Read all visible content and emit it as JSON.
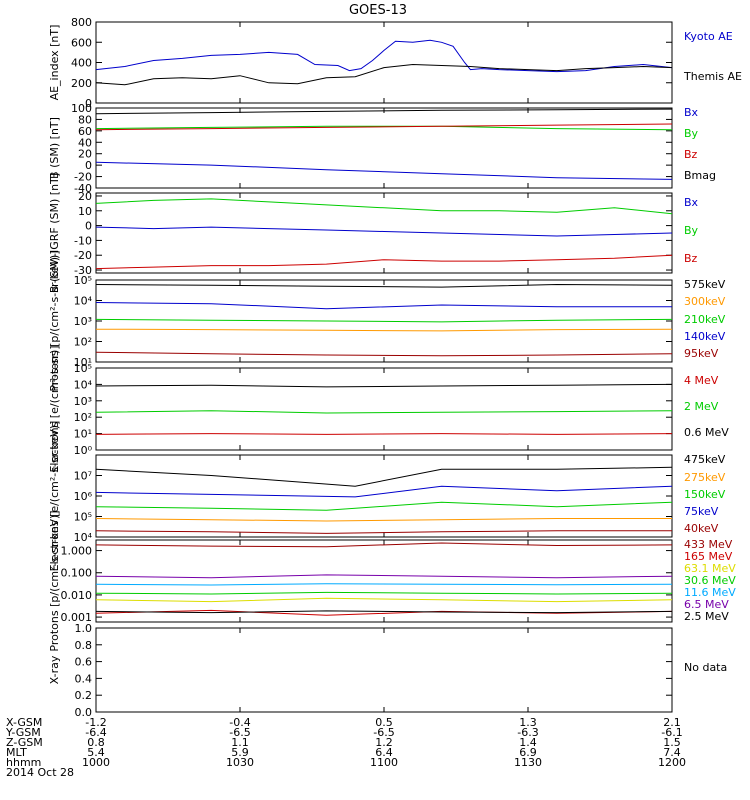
{
  "title": "GOES-13",
  "no_data_text": "No data",
  "ephemeris": {
    "rows": [
      {
        "label": "X-GSM",
        "values": [
          "-1.2",
          "-0.4",
          "0.5",
          "1.3",
          "2.1"
        ]
      },
      {
        "label": "Y-GSM",
        "values": [
          "-6.4",
          "-6.5",
          "-6.5",
          "-6.3",
          "-6.1"
        ]
      },
      {
        "label": "Z-GSM",
        "values": [
          "0.8",
          "1.1",
          "1.2",
          "1.4",
          "1.5"
        ]
      },
      {
        "label": "MLT",
        "values": [
          "5.4",
          "5.9",
          "6.4",
          "6.9",
          "7.4"
        ]
      },
      {
        "label": "hhmm",
        "values": [
          "1000",
          "1030",
          "1100",
          "1130",
          "1200"
        ]
      }
    ],
    "date": "2014 Oct 28"
  },
  "colors": {
    "black": "#000000",
    "blue": "#0000cc",
    "green": "#00cc00",
    "red": "#cc0000",
    "orange": "#ff9900",
    "cyan": "#00aaff",
    "yellow": "#dddd00",
    "purple": "#7700aa",
    "darkred": "#990000"
  },
  "chart_data": [
    {
      "type": "line",
      "ylabel": "AE_index [nT]",
      "yscale": "linear",
      "ylim": [
        0,
        800
      ],
      "ticks": [
        "0",
        "200",
        "400",
        "600",
        "800"
      ],
      "tick_values": [
        0,
        200,
        400,
        600,
        800
      ],
      "x_range_hhmm": [
        "1000",
        "1200"
      ],
      "series": [
        {
          "name": "Kyoto AE",
          "color": "#0000cc",
          "x": [
            0,
            0.05,
            0.1,
            0.15,
            0.2,
            0.25,
            0.3,
            0.35,
            0.38,
            0.42,
            0.44,
            0.46,
            0.48,
            0.5,
            0.52,
            0.55,
            0.58,
            0.6,
            0.62,
            0.64,
            0.65,
            0.67,
            0.7,
            0.75,
            0.8,
            0.85,
            0.9,
            0.95,
            1.0
          ],
          "y": [
            330,
            360,
            420,
            440,
            470,
            480,
            500,
            480,
            380,
            370,
            320,
            340,
            420,
            520,
            610,
            600,
            620,
            600,
            560,
            400,
            330,
            340,
            330,
            320,
            310,
            320,
            360,
            380,
            350
          ]
        },
        {
          "name": "Themis AE",
          "color": "#000000",
          "x": [
            0,
            0.05,
            0.1,
            0.15,
            0.2,
            0.25,
            0.3,
            0.35,
            0.4,
            0.45,
            0.5,
            0.55,
            0.6,
            0.65,
            0.7,
            0.75,
            0.8,
            0.85,
            0.9,
            0.95,
            1.0
          ],
          "y": [
            200,
            180,
            240,
            250,
            240,
            270,
            200,
            190,
            250,
            260,
            350,
            380,
            370,
            360,
            340,
            330,
            320,
            340,
            350,
            360,
            350
          ]
        }
      ]
    },
    {
      "type": "line",
      "ylabel": "B (SM) [nT]",
      "yscale": "linear",
      "ylim": [
        -40,
        100
      ],
      "ticks": [
        "-40",
        "-20",
        "0",
        "20",
        "40",
        "60",
        "80",
        "100"
      ],
      "tick_values": [
        -40,
        -20,
        0,
        20,
        40,
        60,
        80,
        100
      ],
      "series": [
        {
          "name": "Bx",
          "color": "#0000cc",
          "x": [
            0,
            0.2,
            0.4,
            0.6,
            0.8,
            1.0
          ],
          "y": [
            5,
            0,
            -8,
            -15,
            -22,
            -25
          ]
        },
        {
          "name": "By",
          "color": "#00cc00",
          "x": [
            0,
            0.2,
            0.4,
            0.6,
            0.8,
            1.0
          ],
          "y": [
            64,
            66,
            68,
            68,
            64,
            62
          ]
        },
        {
          "name": "Bz",
          "color": "#cc0000",
          "x": [
            0,
            0.2,
            0.4,
            0.6,
            0.8,
            1.0
          ],
          "y": [
            62,
            64,
            66,
            68,
            70,
            72
          ]
        },
        {
          "name": "Bmag",
          "color": "#000000",
          "x": [
            0,
            0.2,
            0.4,
            0.6,
            0.8,
            1.0
          ],
          "y": [
            90,
            92,
            94,
            96,
            97,
            98
          ]
        }
      ]
    },
    {
      "type": "line",
      "ylabel": "B (SM)-IGRF (SM) [nT]",
      "yscale": "linear",
      "ylim": [
        -32,
        22
      ],
      "ticks": [
        "-30",
        "-20",
        "-10",
        "0",
        "10",
        "20"
      ],
      "tick_values": [
        -30,
        -20,
        -10,
        0,
        10,
        20
      ],
      "series": [
        {
          "name": "Bx",
          "color": "#0000cc",
          "x": [
            0,
            0.1,
            0.2,
            0.3,
            0.4,
            0.5,
            0.6,
            0.7,
            0.8,
            0.9,
            1.0
          ],
          "y": [
            -1,
            -2,
            -1,
            -2,
            -3,
            -4,
            -5,
            -6,
            -7,
            -6,
            -5
          ]
        },
        {
          "name": "By",
          "color": "#00cc00",
          "x": [
            0,
            0.1,
            0.2,
            0.3,
            0.4,
            0.5,
            0.6,
            0.7,
            0.8,
            0.9,
            1.0
          ],
          "y": [
            15,
            17,
            18,
            16,
            14,
            12,
            10,
            10,
            9,
            12,
            8
          ]
        },
        {
          "name": "Bz",
          "color": "#cc0000",
          "x": [
            0,
            0.1,
            0.2,
            0.3,
            0.4,
            0.5,
            0.6,
            0.7,
            0.8,
            0.9,
            1.0
          ],
          "y": [
            -29,
            -28,
            -27,
            -27,
            -26,
            -23,
            -24,
            -24,
            -23,
            -22,
            -20
          ]
        }
      ]
    },
    {
      "type": "line",
      "ylabel": "Protons [p/(cm²-s-sr-keV)]",
      "yscale": "log",
      "ylim": [
        10,
        100000
      ],
      "ticks": [
        "10¹",
        "10²",
        "10³",
        "10⁴",
        "10⁵"
      ],
      "tick_values": [
        10,
        100,
        1000,
        10000,
        100000
      ],
      "series": [
        {
          "name": "575keV",
          "color": "#000000",
          "x": [
            0,
            0.2,
            0.4,
            0.6,
            0.8,
            1.0
          ],
          "y": [
            60000,
            55000,
            50000,
            45000,
            60000,
            55000
          ]
        },
        {
          "name": "300keV",
          "color": "#ff9900",
          "x": [
            0,
            0.2,
            0.4,
            0.6,
            0.8,
            1.0
          ],
          "y": [
            400,
            380,
            350,
            330,
            380,
            400
          ]
        },
        {
          "name": "210keV",
          "color": "#00cc00",
          "x": [
            0,
            0.2,
            0.4,
            0.6,
            0.8,
            1.0
          ],
          "y": [
            1200,
            1100,
            1000,
            900,
            1100,
            1200
          ]
        },
        {
          "name": "140keV",
          "color": "#0000cc",
          "x": [
            0,
            0.2,
            0.4,
            0.6,
            0.8,
            1.0
          ],
          "y": [
            8000,
            7000,
            4000,
            6000,
            5000,
            5000
          ]
        },
        {
          "name": "95keV",
          "color": "#990000",
          "x": [
            0,
            0.2,
            0.4,
            0.6,
            0.8,
            1.0
          ],
          "y": [
            30,
            25,
            22,
            20,
            22,
            25
          ]
        }
      ]
    },
    {
      "type": "line",
      "ylabel": "Electrons [e/(cm²-s-sr)]",
      "yscale": "log",
      "ylim": [
        1,
        100000
      ],
      "ticks": [
        "10⁰",
        "10¹",
        "10²",
        "10³",
        "10⁴",
        "10⁵"
      ],
      "tick_values": [
        1,
        10,
        100,
        1000,
        10000,
        100000
      ],
      "series": [
        {
          "name": "4 MeV",
          "color": "#cc0000",
          "x": [
            0,
            0.2,
            0.4,
            0.6,
            0.8,
            1.0
          ],
          "y": [
            9,
            10,
            9,
            10,
            9,
            10
          ]
        },
        {
          "name": "2 MeV",
          "color": "#00cc00",
          "x": [
            0,
            0.2,
            0.4,
            0.6,
            0.8,
            1.0
          ],
          "y": [
            200,
            250,
            180,
            200,
            220,
            250
          ]
        },
        {
          "name": "0.6 MeV",
          "color": "#000000",
          "x": [
            0,
            0.2,
            0.4,
            0.6,
            0.8,
            1.0
          ],
          "y": [
            8000,
            9000,
            7000,
            8000,
            9000,
            10000
          ]
        }
      ]
    },
    {
      "type": "line",
      "ylabel": "Electrons [e/(cm²-s-sr-keV)]",
      "yscale": "log",
      "ylim": [
        10000,
        100000000
      ],
      "ticks": [
        "10⁴",
        "10⁵",
        "10⁶",
        "10⁷"
      ],
      "tick_values": [
        10000,
        100000,
        1000000,
        10000000
      ],
      "series": [
        {
          "name": "475keV",
          "color": "#000000",
          "x": [
            0,
            0.2,
            0.45,
            0.6,
            0.8,
            1.0
          ],
          "y": [
            20000000,
            10000000,
            3000000,
            20000000,
            20000000,
            25000000
          ]
        },
        {
          "name": "275keV",
          "color": "#ff9900",
          "x": [
            0,
            0.2,
            0.4,
            0.6,
            0.8,
            1.0
          ],
          "y": [
            80000,
            70000,
            60000,
            70000,
            80000,
            80000
          ]
        },
        {
          "name": "150keV",
          "color": "#00cc00",
          "x": [
            0,
            0.2,
            0.4,
            0.6,
            0.8,
            1.0
          ],
          "y": [
            300000,
            250000,
            200000,
            500000,
            300000,
            500000
          ]
        },
        {
          "name": "75keV",
          "color": "#0000cc",
          "x": [
            0,
            0.2,
            0.45,
            0.6,
            0.8,
            1.0
          ],
          "y": [
            1500000,
            1200000,
            900000,
            3000000,
            1800000,
            3000000
          ]
        },
        {
          "name": "40keV",
          "color": "#990000",
          "x": [
            0,
            0.2,
            0.4,
            0.6,
            0.8,
            1.0
          ],
          "y": [
            20000,
            18000,
            15000,
            18000,
            20000,
            20000
          ]
        }
      ]
    },
    {
      "type": "line",
      "ylabel": "Protons [p/(cm²-s-sr-keV)]",
      "yscale": "log",
      "ylim": [
        0.0006,
        3
      ],
      "ticks": [
        "0.001",
        "0.010",
        "0.100",
        "1.000"
      ],
      "tick_values": [
        0.001,
        0.01,
        0.1,
        1
      ],
      "series": [
        {
          "name": "433 MeV",
          "color": "#990000",
          "x": [
            0,
            0.2,
            0.4,
            0.6,
            0.8,
            1.0
          ],
          "y": [
            1.8,
            1.6,
            1.5,
            2.2,
            1.7,
            1.8
          ]
        },
        {
          "name": "165 MeV",
          "color": "#cc0000",
          "x": [
            0,
            0.2,
            0.4,
            0.6,
            0.8,
            1.0
          ],
          "y": [
            0.0015,
            0.002,
            0.0012,
            0.0018,
            0.0015,
            0.0018
          ]
        },
        {
          "name": "63.1 MeV",
          "color": "#dddd00",
          "x": [
            0,
            0.2,
            0.4,
            0.6,
            0.8,
            1.0
          ],
          "y": [
            0.006,
            0.005,
            0.007,
            0.006,
            0.005,
            0.006
          ]
        },
        {
          "name": "30.6 MeV",
          "color": "#00cc00",
          "x": [
            0,
            0.2,
            0.4,
            0.6,
            0.8,
            1.0
          ],
          "y": [
            0.012,
            0.011,
            0.013,
            0.012,
            0.011,
            0.012
          ]
        },
        {
          "name": "11.6 MeV",
          "color": "#00aaff",
          "x": [
            0,
            0.2,
            0.4,
            0.6,
            0.8,
            1.0
          ],
          "y": [
            0.03,
            0.028,
            0.032,
            0.03,
            0.029,
            0.03
          ]
        },
        {
          "name": "6.5 MeV",
          "color": "#7700aa",
          "x": [
            0,
            0.2,
            0.4,
            0.6,
            0.8,
            1.0
          ],
          "y": [
            0.07,
            0.06,
            0.08,
            0.07,
            0.06,
            0.07
          ]
        },
        {
          "name": "2.5 MeV",
          "color": "#000000",
          "x": [
            0,
            0.2,
            0.4,
            0.6,
            0.8,
            1.0
          ],
          "y": [
            0.0018,
            0.0016,
            0.0019,
            0.0017,
            0.0016,
            0.0018
          ]
        }
      ]
    },
    {
      "type": "line",
      "ylabel": "X-ray",
      "yscale": "linear",
      "ylim": [
        0,
        1
      ],
      "ticks": [
        "0.0",
        "0.2",
        "0.4",
        "0.6",
        "0.8",
        "1.0"
      ],
      "tick_values": [
        0,
        0.2,
        0.4,
        0.6,
        0.8,
        1.0
      ],
      "series": []
    }
  ]
}
